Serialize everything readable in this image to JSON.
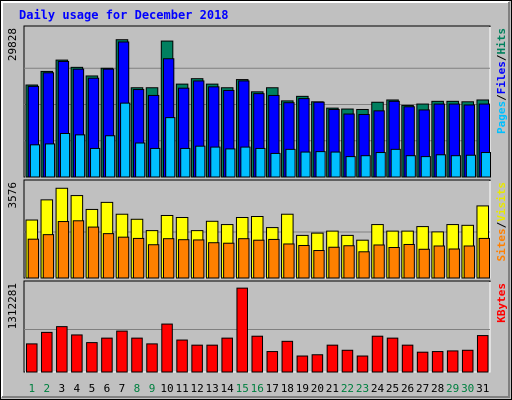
{
  "chart_data": {
    "type": "bar",
    "title": "Daily usage for December 2018",
    "days": [
      "1",
      "2",
      "3",
      "4",
      "5",
      "6",
      "7",
      "8",
      "9",
      "10",
      "11",
      "12",
      "13",
      "14",
      "15",
      "16",
      "17",
      "18",
      "19",
      "20",
      "21",
      "22",
      "23",
      "24",
      "25",
      "26",
      "27",
      "28",
      "29",
      "30",
      "31"
    ],
    "weekend_days": [
      1,
      2,
      8,
      9,
      15,
      16,
      22,
      23,
      29,
      30
    ],
    "panels": [
      {
        "name": "hits-files-pages",
        "scale_label": "29828",
        "ymax": 32000,
        "legend": [
          {
            "text": "Pages",
            "color": "#00c0ff"
          },
          {
            "text": "/",
            "color": "#000000"
          },
          {
            "text": "Files",
            "color": "#0000ff"
          },
          {
            "text": "/",
            "color": "#000000"
          },
          {
            "text": "Hits",
            "color": "#00805c"
          }
        ],
        "series": [
          {
            "name": "Hits",
            "color": "#008060",
            "values": [
              20300,
              23300,
              25800,
              24200,
              22300,
              24000,
              30300,
              19700,
              19700,
              30000,
              20500,
              21700,
              20500,
              19700,
              21500,
              18800,
              19700,
              16800,
              17800,
              16600,
              15200,
              15000,
              14900,
              16500,
              17000,
              15800,
              16100,
              16700,
              16700,
              16600,
              17000
            ]
          },
          {
            "name": "Files",
            "color": "#0000ff",
            "values": [
              20000,
              23000,
              25500,
              23800,
              21800,
              23800,
              29800,
              19300,
              18000,
              26100,
              19600,
              21200,
              19900,
              19100,
              21200,
              18400,
              18000,
              16400,
              17300,
              16500,
              14900,
              13900,
              13800,
              14600,
              16700,
              15500,
              14800,
              16100,
              16100,
              15900,
              16100
            ]
          },
          {
            "name": "Pages",
            "color": "#00c0ff",
            "values": [
              7100,
              7300,
              9600,
              9300,
              6300,
              9100,
              16300,
              7500,
              6300,
              13100,
              6300,
              6800,
              6600,
              6200,
              6600,
              6300,
              5200,
              6100,
              5500,
              5600,
              5500,
              4500,
              4700,
              5400,
              6100,
              4700,
              4500,
              4900,
              4700,
              4800,
              5400
            ]
          }
        ]
      },
      {
        "name": "visits-sites",
        "scale_label": "3576",
        "ymax": 3650,
        "legend": [
          {
            "text": "Sites",
            "color": "#ff8000"
          },
          {
            "text": "/",
            "color": "#000000"
          },
          {
            "text": "Visits",
            "color": "#e8e800"
          }
        ],
        "series": [
          {
            "name": "Visits",
            "color": "#ffff00",
            "values": [
              2300,
              3100,
              3560,
              3270,
              2720,
              3000,
              2530,
              2330,
              1880,
              2480,
              2400,
              1880,
              2250,
              2120,
              2400,
              2440,
              2000,
              2530,
              1690,
              1780,
              1860,
              1690,
              1500,
              2120,
              1860,
              1860,
              2040,
              1830,
              2120,
              2090,
              2860
            ]
          },
          {
            "name": "Sites",
            "color": "#ff8000",
            "values": [
              1540,
              1720,
              2240,
              2270,
              2020,
              1760,
              1620,
              1570,
              1320,
              1560,
              1520,
              1510,
              1400,
              1380,
              1560,
              1500,
              1530,
              1350,
              1290,
              1090,
              1220,
              1280,
              1040,
              1310,
              1210,
              1330,
              1140,
              1270,
              1150,
              1270,
              1570
            ]
          }
        ]
      },
      {
        "name": "kbytes",
        "scale_label": "1312281",
        "ymax": 1330000,
        "legend": [
          {
            "text": "KBytes",
            "color": "#ff0000"
          }
        ],
        "series": [
          {
            "name": "KBytes",
            "color": "#ff0000",
            "values": [
              440000,
              620000,
              710000,
              580000,
              460000,
              530000,
              640000,
              530000,
              440000,
              750000,
              500000,
              420000,
              420000,
              530000,
              1312281,
              560000,
              320000,
              480000,
              250000,
              270000,
              420000,
              340000,
              250000,
              560000,
              530000,
              420000,
              310000,
              320000,
              330000,
              340000,
              570000
            ]
          }
        ]
      }
    ]
  }
}
